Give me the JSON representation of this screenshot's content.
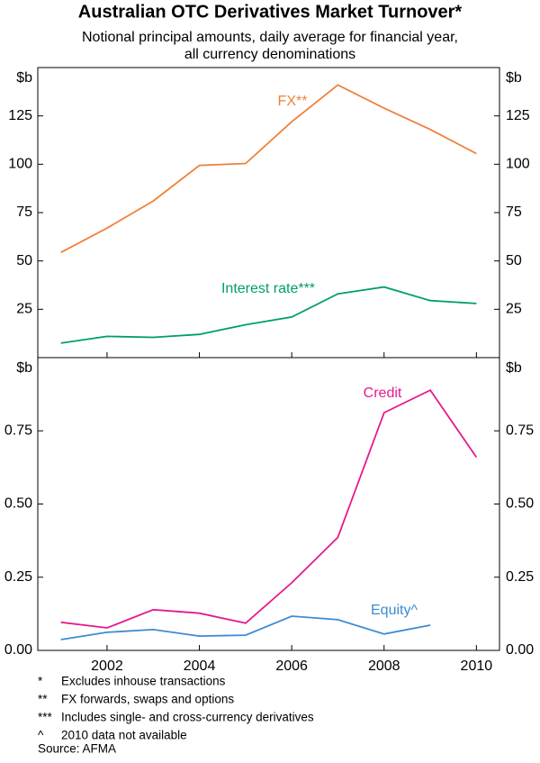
{
  "title": "Australian OTC Derivatives Market Turnover*",
  "subtitle": [
    "Notional principal amounts, daily average for financial year,",
    "all currency denominations"
  ],
  "chart_data": [
    {
      "type": "line",
      "y_label": "$b",
      "x": [
        2001,
        2002,
        2003,
        2004,
        2005,
        2006,
        2007,
        2008,
        2009,
        2010
      ],
      "xlim": [
        2000.5,
        2010.5
      ],
      "ylim": [
        0,
        150
      ],
      "yticks": [
        25,
        50,
        75,
        100,
        125
      ],
      "series": [
        {
          "name": "FX**",
          "color": "#f0803c",
          "values": [
            54.4,
            67,
            81,
            99.4,
            100.4,
            122,
            141,
            129,
            118,
            105.5
          ]
        },
        {
          "name": "Interest rate***",
          "color": "#00a060",
          "values": [
            7.5,
            11,
            10.5,
            12,
            17,
            21,
            33,
            36.5,
            29.5,
            28
          ]
        }
      ]
    },
    {
      "type": "line",
      "y_label": "$b",
      "x": [
        2001,
        2002,
        2003,
        2004,
        2005,
        2006,
        2007,
        2008,
        2009,
        2010
      ],
      "xlim": [
        2000.5,
        2010.5
      ],
      "xticks": [
        2002,
        2004,
        2006,
        2008,
        2010
      ],
      "ylim": [
        0,
        1
      ],
      "yticks": [
        {
          "value": 0,
          "label": "0.00"
        },
        {
          "value": 0.25,
          "label": "0.25"
        },
        {
          "value": 0.5,
          "label": "0.50"
        },
        {
          "value": 0.75,
          "label": "0.75"
        }
      ],
      "series": [
        {
          "name": "Credit",
          "color": "#e6198c",
          "values": [
            0.096,
            0.077,
            0.139,
            0.127,
            0.093,
            0.231,
            0.386,
            0.812,
            0.889,
            0.66
          ]
        },
        {
          "name": "Equity^",
          "color": "#3c8cd2",
          "values": [
            0.037,
            0.062,
            0.071,
            0.049,
            0.052,
            0.117,
            0.105,
            0.056,
            0.086,
            null
          ]
        }
      ]
    }
  ],
  "notes": [
    {
      "mark": "*",
      "text": "Excludes inhouse transactions"
    },
    {
      "mark": "**",
      "text": "FX forwards, swaps and options"
    },
    {
      "mark": "***",
      "text": "Includes single- and cross-currency derivatives"
    },
    {
      "mark": "^",
      "text": "2010 data not available"
    }
  ],
  "source": "Source: AFMA"
}
